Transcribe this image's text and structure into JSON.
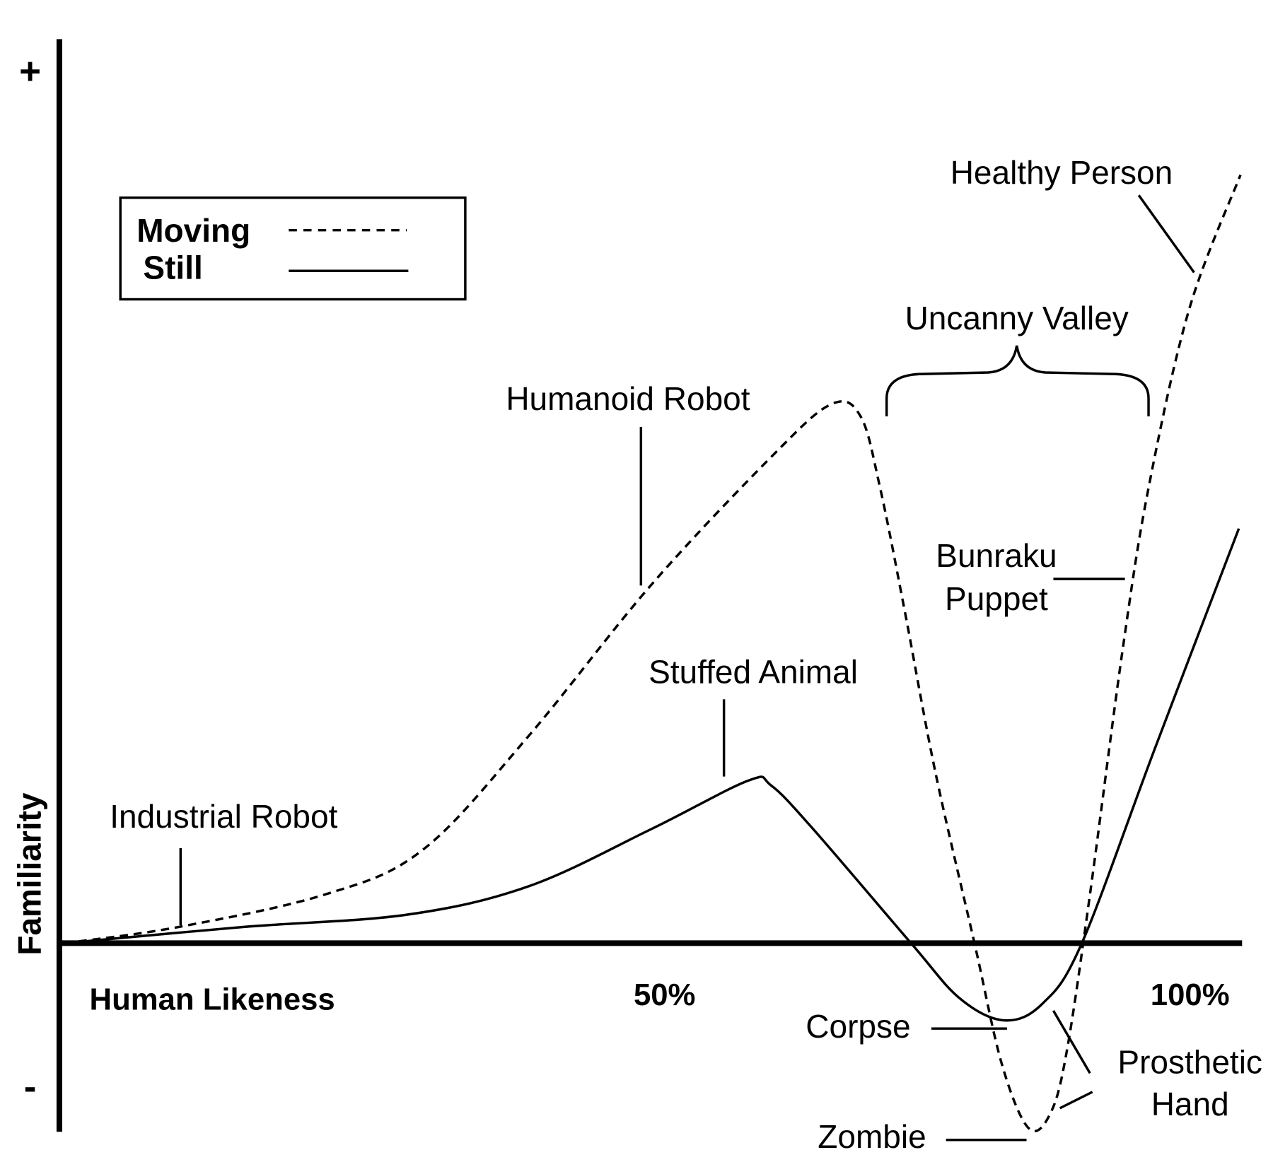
{
  "axes": {
    "y_plus": "+",
    "y_minus": "-",
    "y_label": "Familiarity",
    "x_label": "Human Likeness",
    "x_mid": "50%",
    "x_end": "100%"
  },
  "legend": [
    {
      "label": "Moving"
    },
    {
      "label": "Still"
    }
  ],
  "annotations": {
    "healthy_person": "Healthy Person",
    "uncanny_valley": "Uncanny Valley",
    "humanoid_robot": "Humanoid Robot",
    "bunraku_puppet": [
      "Bunraku",
      "Puppet"
    ],
    "stuffed_animal": "Stuffed Animal",
    "industrial_robot": "Industrial Robot",
    "corpse": "Corpse",
    "prosthetic_hand": [
      "Prosthetic",
      "Hand"
    ],
    "zombie": "Zombie"
  }
}
